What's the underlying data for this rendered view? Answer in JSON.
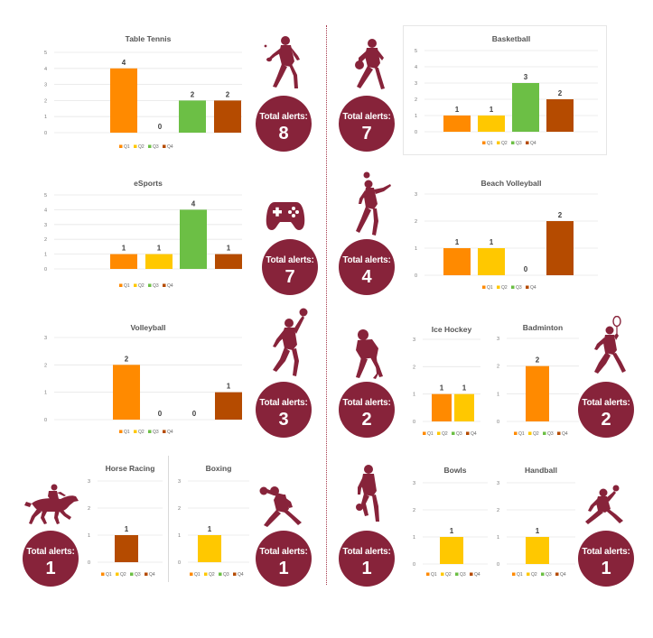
{
  "colors": {
    "badge": "#87233a",
    "Q1": "#ff8a00",
    "Q2": "#ffc800",
    "Q3": "#6cbf45",
    "Q4": "#b54b00",
    "silhouette": "#87233a"
  },
  "badge_label": "Total alerts:",
  "legend": [
    "Q1",
    "Q2",
    "Q3",
    "Q4"
  ],
  "chart_data": [
    {
      "id": "table-tennis",
      "type": "bar",
      "title": "Table Tennis",
      "categories": [
        "Q1",
        "Q2",
        "Q3",
        "Q4"
      ],
      "values": [
        4,
        0,
        2,
        2
      ],
      "ylim": [
        0,
        5
      ],
      "yticks": [
        0,
        1,
        2,
        3,
        4,
        5
      ]
    },
    {
      "id": "basketball",
      "type": "bar",
      "title": "Basketball",
      "categories": [
        "Q1",
        "Q2",
        "Q3",
        "Q4"
      ],
      "values": [
        1,
        1,
        3,
        2
      ],
      "ylim": [
        0,
        5
      ],
      "yticks": [
        0,
        1,
        2,
        3,
        4,
        5
      ]
    },
    {
      "id": "esports",
      "type": "bar",
      "title": "eSports",
      "categories": [
        "Q1",
        "Q2",
        "Q3",
        "Q4"
      ],
      "values": [
        1,
        1,
        4,
        1
      ],
      "ylim": [
        0,
        5
      ],
      "yticks": [
        0,
        1,
        2,
        3,
        4,
        5
      ]
    },
    {
      "id": "beach-volleyball",
      "type": "bar",
      "title": "Beach Volleyball",
      "categories": [
        "Q1",
        "Q2",
        "Q3",
        "Q4"
      ],
      "values": [
        1,
        1,
        0,
        2
      ],
      "ylim": [
        0,
        3
      ],
      "yticks": [
        0,
        1,
        2,
        3
      ]
    },
    {
      "id": "volleyball",
      "type": "bar",
      "title": "Volleyball",
      "categories": [
        "Q1",
        "Q2",
        "Q3",
        "Q4"
      ],
      "values": [
        2,
        0,
        0,
        1
      ],
      "ylim": [
        0,
        3
      ],
      "yticks": [
        0,
        1,
        2,
        3
      ]
    },
    {
      "id": "ice-hockey",
      "type": "bar",
      "title": "Ice Hockey",
      "categories": [
        "Q1",
        "Q2",
        "Q3",
        "Q4"
      ],
      "values": [
        1,
        1,
        null,
        null
      ],
      "ylim": [
        0,
        3
      ],
      "yticks": [
        0,
        1,
        2,
        3
      ]
    },
    {
      "id": "badminton",
      "type": "bar",
      "title": "Badminton",
      "categories": [
        "Q1",
        "Q2",
        "Q3",
        "Q4"
      ],
      "values": [
        2,
        null,
        null,
        null
      ],
      "ylim": [
        0,
        3
      ],
      "yticks": [
        0,
        1,
        2,
        3
      ]
    },
    {
      "id": "horse-racing",
      "type": "bar",
      "title": "Horse Racing",
      "categories": [
        "Q1",
        "Q2",
        "Q3",
        "Q4"
      ],
      "values": [
        null,
        null,
        null,
        1
      ],
      "ylim": [
        0,
        3
      ],
      "yticks": [
        0,
        1,
        2,
        3
      ]
    },
    {
      "id": "boxing",
      "type": "bar",
      "title": "Boxing",
      "categories": [
        "Q1",
        "Q2",
        "Q3",
        "Q4"
      ],
      "values": [
        null,
        1,
        null,
        null
      ],
      "ylim": [
        0,
        3
      ],
      "yticks": [
        0,
        1,
        2,
        3
      ]
    },
    {
      "id": "bowls",
      "type": "bar",
      "title": "Bowls",
      "categories": [
        "Q1",
        "Q2",
        "Q3",
        "Q4"
      ],
      "values": [
        null,
        1,
        null,
        null
      ],
      "ylim": [
        0,
        3
      ],
      "yticks": [
        0,
        1,
        2,
        3
      ]
    },
    {
      "id": "handball",
      "type": "bar",
      "title": "Handball",
      "categories": [
        "Q1",
        "Q2",
        "Q3",
        "Q4"
      ],
      "values": [
        null,
        1,
        null,
        null
      ],
      "ylim": [
        0,
        3
      ],
      "yticks": [
        0,
        1,
        2,
        3
      ]
    }
  ],
  "badges": [
    {
      "id": "table-tennis",
      "count": "8"
    },
    {
      "id": "basketball",
      "count": "7"
    },
    {
      "id": "esports",
      "count": "7"
    },
    {
      "id": "beach-volleyball",
      "count": "4"
    },
    {
      "id": "volleyball",
      "count": "3"
    },
    {
      "id": "ice-hockey",
      "count": "2"
    },
    {
      "id": "badminton",
      "count": "2"
    },
    {
      "id": "horse-racing",
      "count": "1"
    },
    {
      "id": "boxing",
      "count": "1"
    },
    {
      "id": "bowls",
      "count": "1"
    },
    {
      "id": "handball",
      "count": "1"
    }
  ],
  "icons": [
    "table-tennis-player-icon",
    "basketball-player-icon",
    "game-controller-icon",
    "volleyball-player-icon",
    "volleyball-spiker-icon",
    "ice-hockey-player-icon",
    "badminton-player-icon",
    "horse-racing-icon",
    "boxer-icon",
    "bowls-player-icon",
    "handball-player-icon"
  ]
}
